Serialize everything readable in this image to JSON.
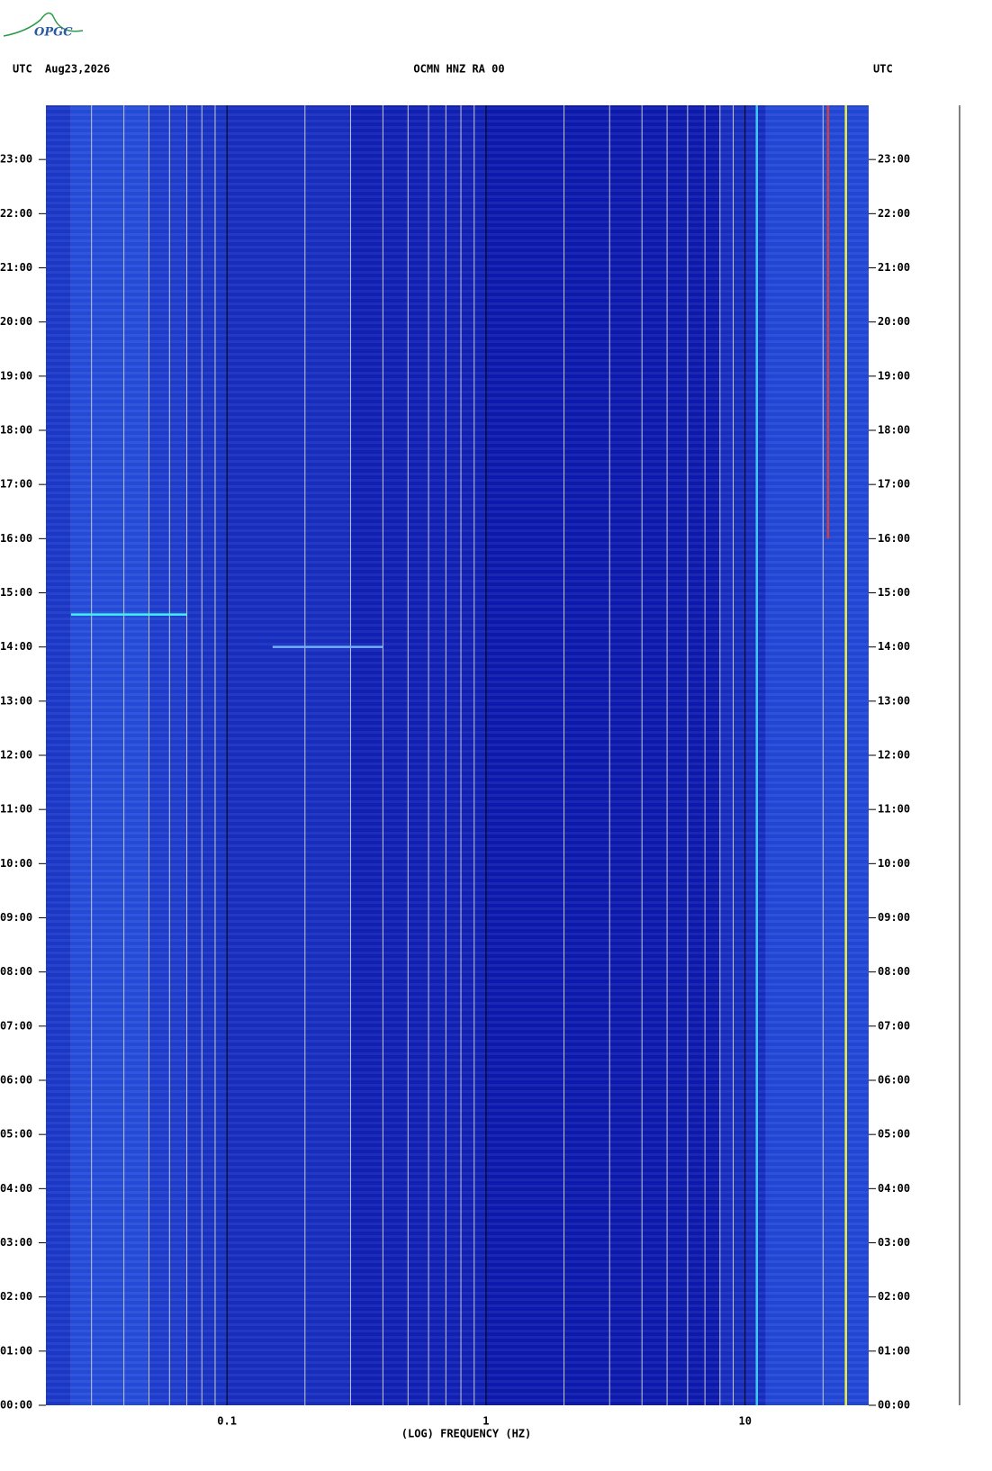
{
  "logo": "OPGC",
  "chart_data": {
    "type": "spectrogram",
    "title": "OCMN HNZ RA 00",
    "date": "Aug23,2026",
    "left_label": "UTC",
    "right_label": "UTC",
    "x_label": "(LOG) FREQUENCY (HZ)",
    "xscale": "log",
    "xlim": [
      0.02,
      30
    ],
    "xticks": [
      0.1,
      1,
      10
    ],
    "xgrid_minor": [
      0.03,
      0.04,
      0.05,
      0.06,
      0.07,
      0.08,
      0.09,
      0.2,
      0.3,
      0.4,
      0.5,
      0.6,
      0.7,
      0.8,
      0.9,
      2,
      3,
      4,
      5,
      6,
      7,
      8,
      9,
      20
    ],
    "ylim": [
      0,
      24
    ],
    "yticks": [
      {
        "value": 0,
        "label": "00:00"
      },
      {
        "value": 1,
        "label": "01:00"
      },
      {
        "value": 2,
        "label": "02:00"
      },
      {
        "value": 3,
        "label": "03:00"
      },
      {
        "value": 4,
        "label": "04:00"
      },
      {
        "value": 5,
        "label": "05:00"
      },
      {
        "value": 6,
        "label": "06:00"
      },
      {
        "value": 7,
        "label": "07:00"
      },
      {
        "value": 8,
        "label": "08:00"
      },
      {
        "value": 9,
        "label": "09:00"
      },
      {
        "value": 10,
        "label": "10:00"
      },
      {
        "value": 11,
        "label": "11:00"
      },
      {
        "value": 12,
        "label": "12:00"
      },
      {
        "value": 13,
        "label": "13:00"
      },
      {
        "value": 14,
        "label": "14:00"
      },
      {
        "value": 15,
        "label": "15:00"
      },
      {
        "value": 16,
        "label": "16:00"
      },
      {
        "value": 17,
        "label": "17:00"
      },
      {
        "value": 18,
        "label": "18:00"
      },
      {
        "value": 19,
        "label": "19:00"
      },
      {
        "value": 20,
        "label": "20:00"
      },
      {
        "value": 21,
        "label": "21:00"
      },
      {
        "value": 22,
        "label": "22:00"
      },
      {
        "value": 23,
        "label": "23:00"
      }
    ],
    "bins": [
      0.02,
      0.025,
      0.05,
      0.07,
      0.1,
      0.3,
      1,
      8,
      12,
      30
    ],
    "levels": [
      0.35,
      0.55,
      0.4,
      0.3,
      0.25,
      0.12,
      0.05,
      0.25,
      0.5
    ],
    "colormap": [
      "#0a14a8",
      "#3a78ff"
    ],
    "features": [
      {
        "color": "#40f0f0",
        "x": [
          0.025,
          0.07
        ],
        "y": [
          14.6,
          14.6
        ]
      },
      {
        "color": "#6fb0ff",
        "x": [
          0.15,
          0.4
        ],
        "y": [
          14,
          14
        ]
      },
      {
        "color": "#e8f040",
        "x": [
          24.5,
          24.5
        ],
        "y": [
          0,
          24
        ]
      },
      {
        "color": "#d04040",
        "x": [
          20.9,
          20.9
        ],
        "y": [
          16,
          24
        ]
      },
      {
        "color": "#40c8f0",
        "x": [
          11.1,
          11.1
        ],
        "y": [
          0,
          24
        ]
      }
    ]
  }
}
